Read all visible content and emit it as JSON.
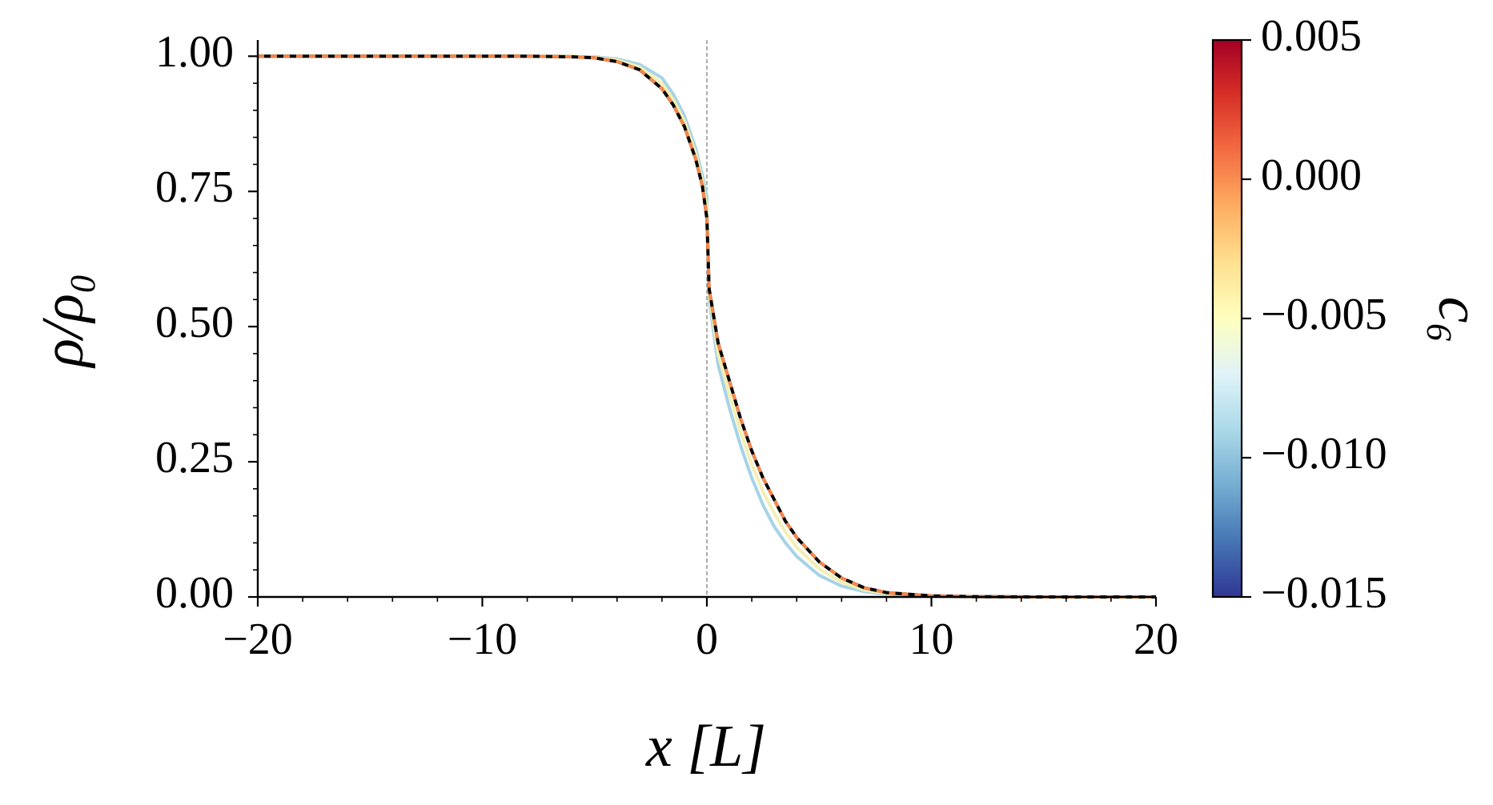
{
  "chart_data": {
    "type": "line",
    "xlabel": "x [L]",
    "ylabel": "ρ/ρ₀",
    "x": [
      -20,
      -15,
      -10,
      -8,
      -6,
      -5,
      -4,
      -3,
      -2,
      -1.5,
      -1,
      -0.5,
      -0.2,
      0,
      0.1,
      0.5,
      1,
      1.5,
      2,
      2.5,
      3,
      3.5,
      4,
      5,
      6,
      7,
      8,
      10,
      12,
      15,
      20
    ],
    "series": [
      {
        "color": "#a6d3e6",
        "style": "solid",
        "values": [
          1,
          1,
          1,
          1,
          1,
          0.999,
          0.995,
          0.985,
          0.96,
          0.93,
          0.89,
          0.83,
          0.78,
          0.74,
          0.55,
          0.43,
          0.35,
          0.28,
          0.22,
          0.17,
          0.13,
          0.1,
          0.075,
          0.04,
          0.02,
          0.01,
          0.005,
          0.001,
          0.0003,
          0,
          0
        ]
      },
      {
        "color": "#f3efb4",
        "style": "solid",
        "values": [
          1,
          1,
          1,
          1,
          1,
          0.998,
          0.993,
          0.98,
          0.95,
          0.92,
          0.88,
          0.82,
          0.77,
          0.72,
          0.56,
          0.45,
          0.375,
          0.305,
          0.245,
          0.195,
          0.155,
          0.12,
          0.092,
          0.052,
          0.027,
          0.013,
          0.006,
          0.0015,
          0.0004,
          0,
          0
        ]
      },
      {
        "color": "#000000",
        "style": "solid",
        "values": [
          1,
          1,
          1,
          1,
          0.999,
          0.997,
          0.99,
          0.975,
          0.94,
          0.91,
          0.87,
          0.81,
          0.76,
          0.7,
          0.57,
          0.47,
          0.4,
          0.33,
          0.27,
          0.22,
          0.18,
          0.14,
          0.11,
          0.065,
          0.035,
          0.017,
          0.008,
          0.002,
          0.0005,
          0,
          0
        ]
      },
      {
        "color": "#f4874b",
        "style": "dashed",
        "values": [
          1,
          1,
          1,
          1,
          0.999,
          0.997,
          0.99,
          0.975,
          0.94,
          0.91,
          0.87,
          0.81,
          0.76,
          0.7,
          0.57,
          0.47,
          0.4,
          0.33,
          0.27,
          0.22,
          0.18,
          0.14,
          0.11,
          0.065,
          0.035,
          0.017,
          0.008,
          0.002,
          0.0005,
          0,
          0
        ]
      }
    ],
    "xlim": [
      -20,
      20
    ],
    "ylim": [
      0,
      1.03
    ],
    "xticks": [
      {
        "value": -20,
        "label": "−20"
      },
      {
        "value": -10,
        "label": "−10"
      },
      0,
      10,
      20
    ],
    "yticks": [
      {
        "value": 0,
        "label": "0.00"
      },
      0.25,
      {
        "value": 0.5,
        "label": "0.50"
      },
      0.75,
      {
        "value": 1,
        "label": "1.00"
      }
    ],
    "xminorticks": [
      -18,
      -16,
      -14,
      -12,
      -8,
      -6,
      -4,
      -2,
      2,
      4,
      6,
      8,
      12,
      14,
      16,
      18
    ],
    "yminorticks": [
      0.05,
      0.1,
      0.15,
      0.2,
      0.3,
      0.35,
      0.4,
      0.45,
      0.55,
      0.6,
      0.65,
      0.7,
      0.8,
      0.85,
      0.9,
      0.95
    ],
    "vline_x": 0,
    "colorbar": {
      "label": "c₆",
      "lim": [
        -0.015,
        0.005
      ],
      "ticks": [
        {
          "value": -0.015,
          "label": "−0.015"
        },
        {
          "value": -0.01,
          "label": "−0.010"
        },
        {
          "value": -0.005,
          "label": "−0.005"
        },
        {
          "value": 0,
          "label": "0.000"
        },
        0.005
      ],
      "colors": [
        "#313695",
        "#4575b4",
        "#74add1",
        "#abd9e9",
        "#e0f3f8",
        "#ffffbf",
        "#fee090",
        "#fdae61",
        "#f46d43",
        "#d73027",
        "#a50026"
      ]
    }
  }
}
